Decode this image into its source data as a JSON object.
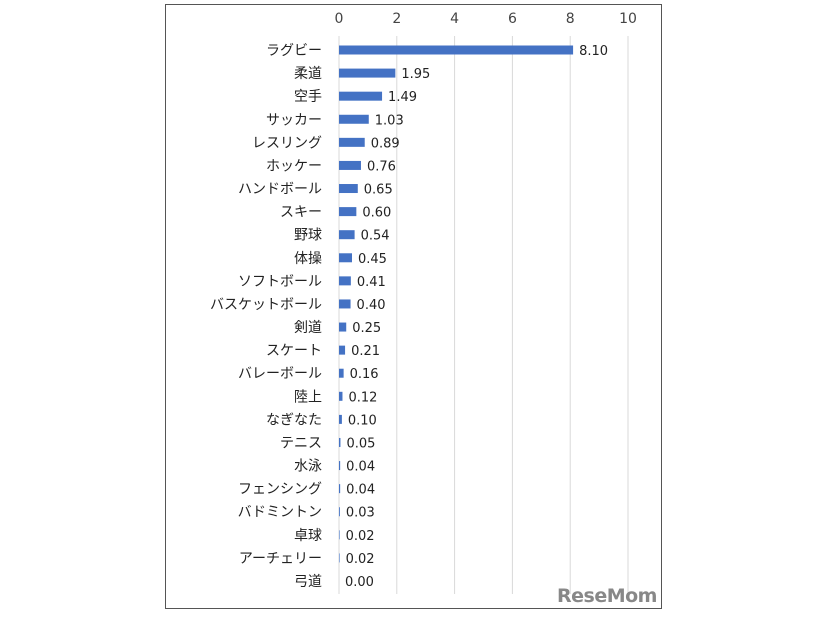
{
  "chart_data": {
    "type": "bar",
    "orientation": "horizontal",
    "categories": [
      "ラグビー",
      "柔道",
      "空手",
      "サッカー",
      "レスリング",
      "ホッケー",
      "ハンドボール",
      "スキー",
      "野球",
      "体操",
      "ソフトボール",
      "バスケットボール",
      "剣道",
      "スケート",
      "バレーボール",
      "陸上",
      "なぎなた",
      "テニス",
      "水泳",
      "フェンシング",
      "バドミントン",
      "卓球",
      "アーチェリー",
      "弓道"
    ],
    "values": [
      8.1,
      1.95,
      1.49,
      1.03,
      0.89,
      0.76,
      0.65,
      0.6,
      0.54,
      0.45,
      0.41,
      0.4,
      0.25,
      0.21,
      0.16,
      0.12,
      0.1,
      0.05,
      0.04,
      0.04,
      0.03,
      0.02,
      0.02,
      0.0
    ],
    "data_labels": [
      "8.10",
      "1.95",
      "1.49",
      "1.03",
      "0.89",
      "0.76",
      "0.65",
      "0.60",
      "0.54",
      "0.45",
      "0.41",
      "0.40",
      "0.25",
      "0.21",
      "0.16",
      "0.12",
      "0.10",
      "0.05",
      "0.04",
      "0.04",
      "0.03",
      "0.02",
      "0.02",
      "0.00"
    ],
    "xlim": [
      0,
      10
    ],
    "x_ticks": [
      "0",
      "2",
      "4",
      "6",
      "8",
      "10"
    ],
    "x_axis_position": "top",
    "grid": true,
    "bar_color": "#4472C4",
    "title": "",
    "xlabel": "",
    "ylabel": ""
  },
  "watermark": "ReseMom"
}
